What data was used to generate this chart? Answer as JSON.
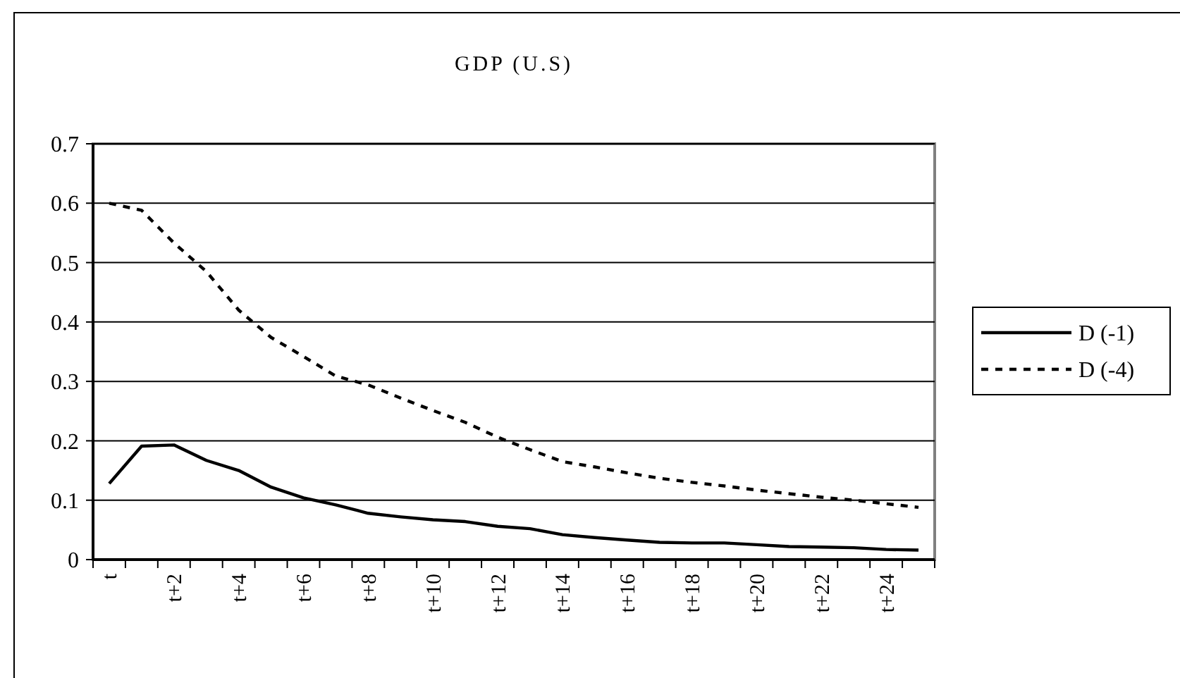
{
  "chart_data": {
    "type": "line",
    "title": "GDP (U.S)",
    "categories": [
      "t",
      null,
      "t+2",
      null,
      "t+4",
      null,
      "t+6",
      null,
      "t+8",
      null,
      "t+10",
      null,
      "t+12",
      null,
      "t+14",
      null,
      "t+16",
      null,
      "t+18",
      null,
      "t+20",
      null,
      "t+22",
      null,
      "t+24",
      null
    ],
    "series": [
      {
        "name": "D (-1)",
        "color": "#000000",
        "line_style": "solid",
        "values": [
          0.128,
          0.191,
          0.193,
          0.167,
          0.15,
          0.122,
          0.104,
          0.092,
          0.078,
          0.072,
          0.067,
          0.064,
          0.056,
          0.052,
          0.042,
          0.037,
          0.033,
          0.029,
          0.028,
          0.028,
          0.025,
          0.022,
          0.021,
          0.02,
          0.017,
          0.016
        ]
      },
      {
        "name": "D (-4)",
        "color": "#000000",
        "line_style": "dashed",
        "values": [
          0.6,
          0.588,
          0.533,
          0.485,
          0.42,
          0.374,
          0.342,
          0.309,
          0.294,
          0.272,
          0.251,
          0.231,
          0.206,
          0.185,
          0.165,
          0.156,
          0.146,
          0.137,
          0.13,
          0.124,
          0.117,
          0.111,
          0.105,
          0.1,
          0.094,
          0.088
        ]
      }
    ],
    "ylim": [
      0,
      0.7
    ],
    "yticks": [
      0,
      0.1,
      0.2,
      0.3,
      0.4,
      0.5,
      0.6,
      0.7
    ],
    "grid": "y",
    "legend": "right",
    "marker": "none"
  }
}
